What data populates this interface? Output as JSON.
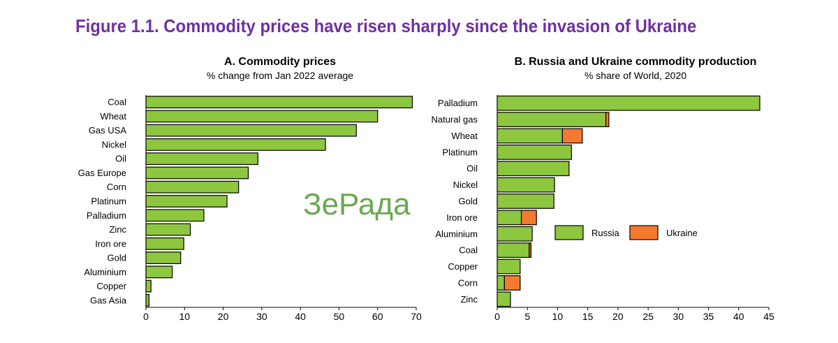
{
  "figure_title": "Figure 1.1. Commodity prices have risen sharply since the invasion of Ukraine",
  "watermark": "ЗеРада",
  "colors": {
    "title": "#7030a0",
    "russia": "#8dc63f",
    "ukraine": "#f47a30",
    "bar_outline": "#000000"
  },
  "chart_data": [
    {
      "type": "bar",
      "orientation": "horizontal",
      "title": "A. Commodity prices",
      "subtitle": "% change from Jan 2022 average",
      "xlabel": "",
      "ylabel": "",
      "xlim": [
        0,
        70
      ],
      "ticks": [
        0,
        10,
        20,
        30,
        40,
        50,
        60,
        70
      ],
      "categories": [
        "Coal",
        "Wheat",
        "Gas USA",
        "Nickel",
        "Oil",
        "Gas Europe",
        "Corn",
        "Platinum",
        "Palladium",
        "Zinc",
        "Iron ore",
        "Gold",
        "Aluminium",
        "Copper",
        "Gas Asia"
      ],
      "values": [
        69,
        60,
        54.5,
        46.5,
        29,
        26.5,
        24,
        21,
        15,
        11.5,
        9.8,
        9,
        6.8,
        1.3,
        0.8
      ],
      "grid": false,
      "legend": "none"
    },
    {
      "type": "bar",
      "orientation": "horizontal",
      "stacked": true,
      "title": "B. Russia and Ukraine commodity production",
      "subtitle": "% share of World, 2020",
      "xlabel": "",
      "ylabel": "",
      "xlim": [
        0,
        45
      ],
      "ticks": [
        0,
        5,
        10,
        15,
        20,
        25,
        30,
        35,
        40,
        45
      ],
      "categories": [
        "Palladium",
        "Natural gas",
        "Wheat",
        "Platinum",
        "Oil",
        "Nickel",
        "Gold",
        "Iron ore",
        "Aluminium",
        "Coal",
        "Copper",
        "Corn",
        "Zinc"
      ],
      "series": [
        {
          "name": "Russia",
          "values": [
            43.5,
            18,
            10.8,
            12.3,
            11.9,
            9.5,
            9.4,
            4,
            5.8,
            5.3,
            3.8,
            1.2,
            2.2
          ]
        },
        {
          "name": "Ukraine",
          "values": [
            0,
            0.5,
            3.3,
            0,
            0,
            0,
            0,
            2.5,
            0,
            0.3,
            0,
            2.6,
            0
          ]
        }
      ],
      "grid": false,
      "legend": "center-right"
    }
  ]
}
